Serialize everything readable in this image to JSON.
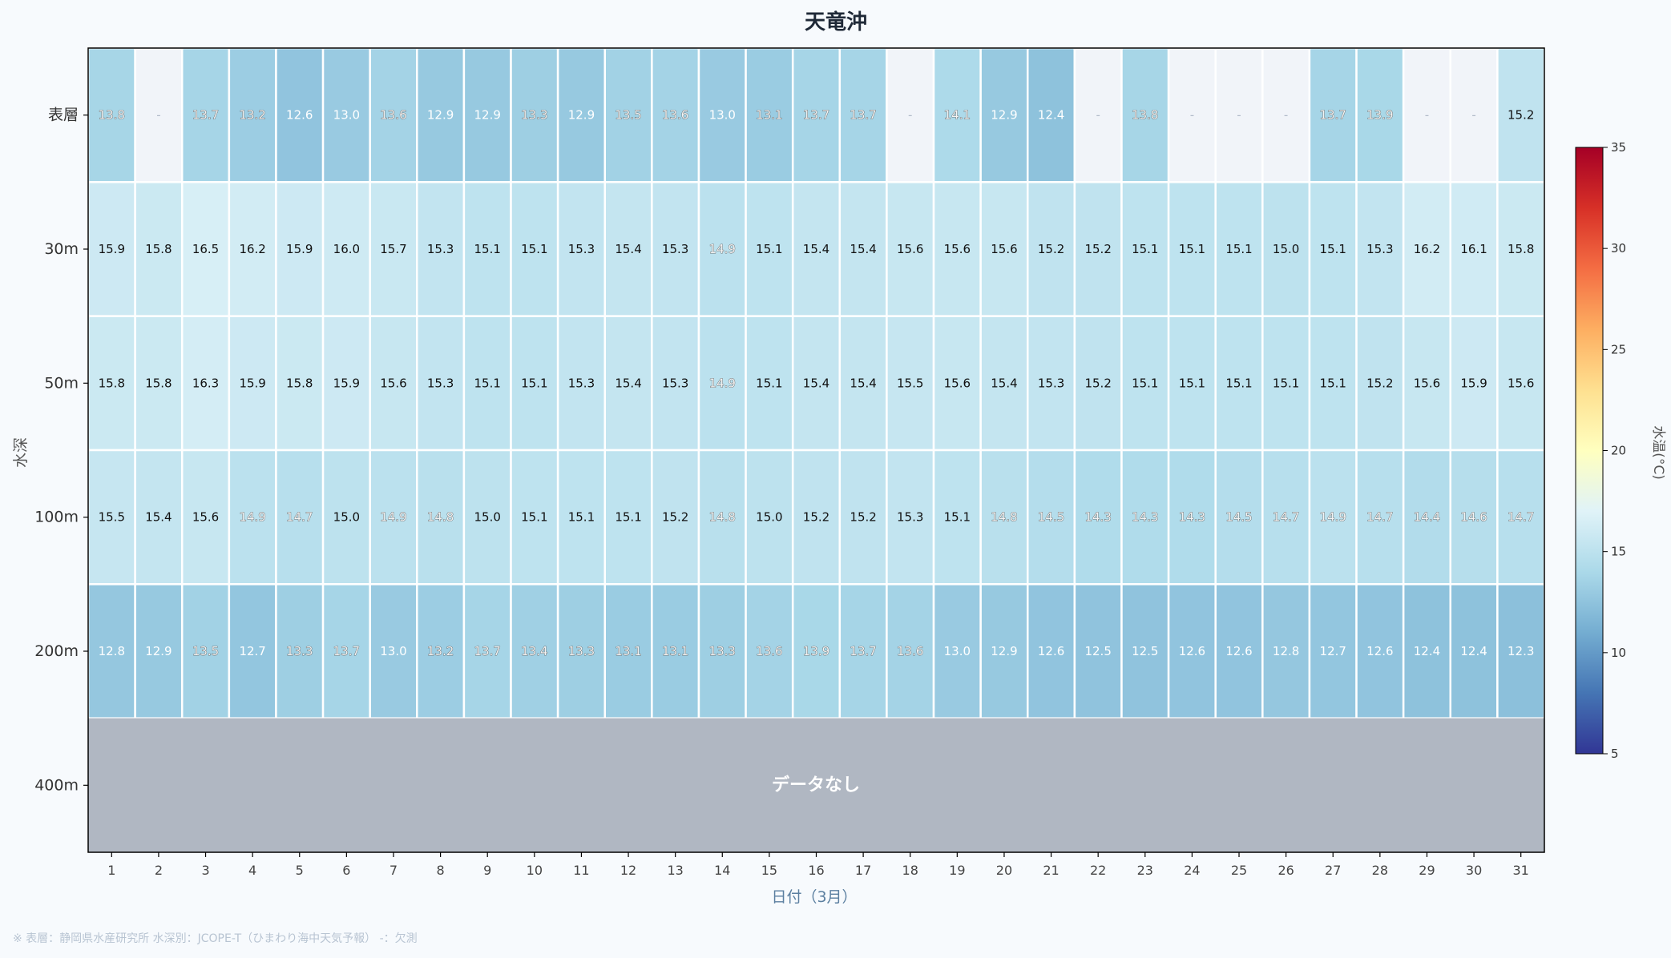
{
  "chart_data": {
    "type": "heatmap",
    "title": "天竜沖",
    "xlabel": "日付（3月）",
    "ylabel": "水深",
    "x": [
      "1",
      "2",
      "3",
      "4",
      "5",
      "6",
      "7",
      "8",
      "9",
      "10",
      "11",
      "12",
      "13",
      "14",
      "15",
      "16",
      "17",
      "18",
      "19",
      "20",
      "21",
      "22",
      "23",
      "24",
      "25",
      "26",
      "27",
      "28",
      "29",
      "30",
      "31"
    ],
    "y": [
      "表層",
      "30m",
      "50m",
      "100m",
      "200m",
      "400m"
    ],
    "missing_label": "-",
    "values": [
      [
        13.8,
        null,
        13.7,
        13.2,
        12.6,
        13.0,
        13.6,
        12.9,
        12.9,
        13.3,
        12.9,
        13.5,
        13.6,
        13.0,
        13.1,
        13.7,
        13.7,
        null,
        14.1,
        12.9,
        12.4,
        null,
        13.8,
        null,
        null,
        null,
        13.7,
        13.9,
        null,
        null,
        15.2
      ],
      [
        15.9,
        15.8,
        16.5,
        16.2,
        15.9,
        16.0,
        15.7,
        15.3,
        15.1,
        15.1,
        15.3,
        15.4,
        15.3,
        14.9,
        15.1,
        15.4,
        15.4,
        15.6,
        15.6,
        15.6,
        15.2,
        15.2,
        15.1,
        15.1,
        15.1,
        15.0,
        15.1,
        15.3,
        16.2,
        16.1,
        15.8
      ],
      [
        15.8,
        15.8,
        16.3,
        15.9,
        15.8,
        15.9,
        15.6,
        15.3,
        15.1,
        15.1,
        15.3,
        15.4,
        15.3,
        14.9,
        15.1,
        15.4,
        15.4,
        15.5,
        15.6,
        15.4,
        15.3,
        15.2,
        15.1,
        15.1,
        15.1,
        15.1,
        15.1,
        15.2,
        15.6,
        15.9,
        15.6
      ],
      [
        15.5,
        15.4,
        15.6,
        14.9,
        14.7,
        15.0,
        14.9,
        14.8,
        15.0,
        15.1,
        15.1,
        15.1,
        15.2,
        14.8,
        15.0,
        15.2,
        15.2,
        15.3,
        15.1,
        14.8,
        14.5,
        14.3,
        14.3,
        14.3,
        14.5,
        14.7,
        14.9,
        14.7,
        14.4,
        14.6,
        14.7
      ],
      [
        12.8,
        12.9,
        13.5,
        12.7,
        13.3,
        13.7,
        13.0,
        13.2,
        13.7,
        13.4,
        13.3,
        13.1,
        13.1,
        13.3,
        13.6,
        13.9,
        13.7,
        13.6,
        13.0,
        12.9,
        12.6,
        12.5,
        12.5,
        12.6,
        12.6,
        12.8,
        12.7,
        12.6,
        12.4,
        12.4,
        12.3
      ],
      null
    ],
    "no_data_label": "データなし",
    "colorbar": {
      "label": "水温(°C)",
      "min": 5,
      "max": 35,
      "ticks": [
        5,
        10,
        15,
        20,
        25,
        30,
        35
      ],
      "colormap": "RdYlBu_r"
    },
    "colors": {
      "missing_cell": "#f1f4f9",
      "no_data_band": "#b0b7c2",
      "grid_line": "#ffffff"
    }
  },
  "footnote": "※ 表層：静岡県水産研究所 水深別：JCOPE-T（ひまわり海中天気予報） -：欠測"
}
